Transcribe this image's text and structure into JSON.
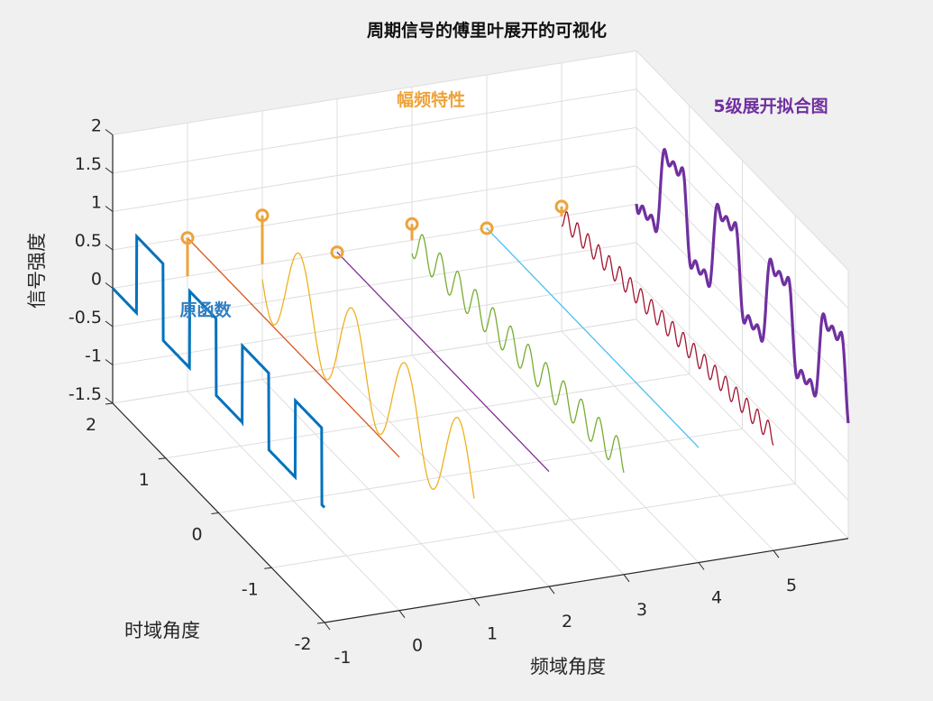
{
  "chart_data": {
    "type": "line3d",
    "title": "周期信号的傅里叶展开的可视化",
    "xlabel": "频域角度",
    "ylabel": "时域角度",
    "zlabel": "信号强度",
    "xlim": [
      -1,
      6
    ],
    "ylim": [
      -2,
      2
    ],
    "zlim": [
      -1.5,
      2
    ],
    "xticks": [
      "-1",
      "0",
      "1",
      "2",
      "3",
      "4",
      "5"
    ],
    "yticks": [
      "-2",
      "-1",
      "0",
      "1",
      "2"
    ],
    "zticks": [
      "-1.5",
      "-1",
      "-0.5",
      "0",
      "0.5",
      "1",
      "1.5",
      "2"
    ],
    "grid": true,
    "original_function": {
      "label": "原函数",
      "x": -1,
      "type": "square",
      "low": 0,
      "high": 1,
      "period": 1,
      "color": "#0072BD"
    },
    "amplitude_spectrum": {
      "label": "幅频特性",
      "color": "#EDA33A",
      "x": [
        0,
        1,
        2,
        3,
        4,
        5
      ],
      "z": [
        0.5,
        0.637,
        0,
        0.212,
        0,
        0.127
      ]
    },
    "harmonics": [
      {
        "x": 0,
        "amplitude": 0.5,
        "cycles_per_unit": 0,
        "color": "#D95319"
      },
      {
        "x": 1,
        "amplitude": 0.637,
        "cycles_per_unit": 1,
        "color": "#EDB120"
      },
      {
        "x": 2,
        "amplitude": 0,
        "cycles_per_unit": 2,
        "color": "#7E2F8E"
      },
      {
        "x": 3,
        "amplitude": 0.212,
        "cycles_per_unit": 3,
        "color": "#77AC30"
      },
      {
        "x": 4,
        "amplitude": 0,
        "cycles_per_unit": 4,
        "color": "#4DBEEE"
      },
      {
        "x": 5,
        "amplitude": 0.127,
        "cycles_per_unit": 5,
        "color": "#A2142F"
      }
    ],
    "fit": {
      "label": "5级展开拟合图",
      "x": 6,
      "terms": 5,
      "color": "#7030A0"
    }
  }
}
